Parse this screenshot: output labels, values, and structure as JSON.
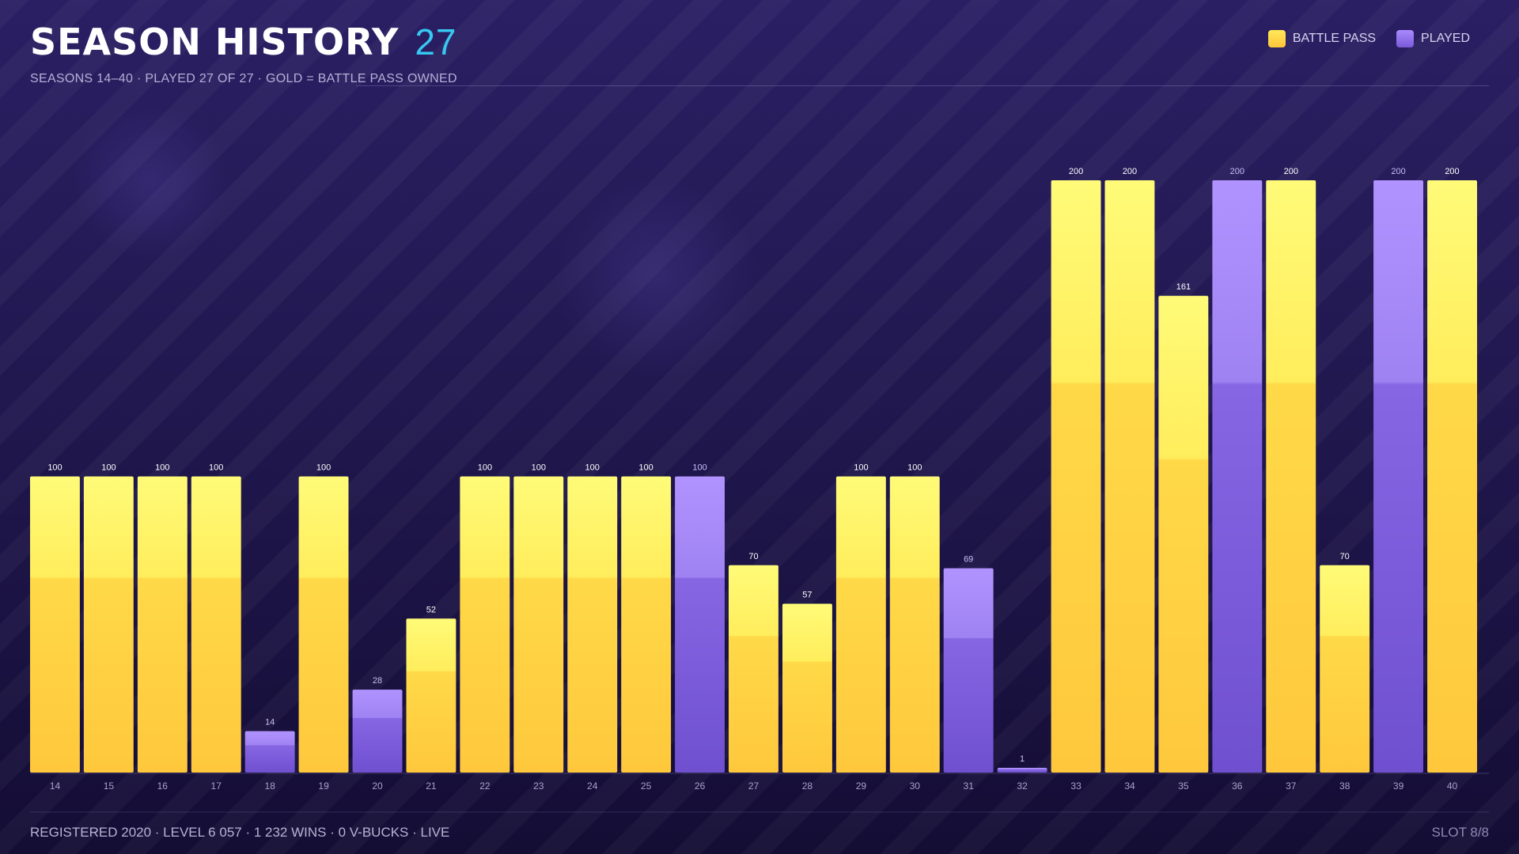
{
  "header": {
    "title": "SEASON HISTORY",
    "count": "27",
    "subtitle": "SEASONS 14–40 · PLAYED 27 OF 27 · GOLD = BATTLE PASS OWNED"
  },
  "legend": {
    "items": [
      {
        "label": "BATTLE PASS",
        "color": "#ffd84a"
      },
      {
        "label": "PLAYED",
        "color": "#8e6ff0"
      }
    ]
  },
  "footer": {
    "left": "REGISTERED 2020 · LEVEL 6 057 · 1 232 WINS · 0 V-BUCKS · LIVE",
    "right": "SLOT 8/8"
  },
  "chart_data": {
    "type": "bar",
    "categories": [
      "14",
      "15",
      "16",
      "17",
      "18",
      "19",
      "20",
      "21",
      "22",
      "23",
      "24",
      "25",
      "26",
      "27",
      "28",
      "29",
      "30",
      "31",
      "32",
      "33",
      "34",
      "35",
      "36",
      "37",
      "38",
      "39",
      "40"
    ],
    "values": [
      100,
      100,
      100,
      100,
      14,
      100,
      28,
      52,
      100,
      100,
      100,
      100,
      100,
      70,
      57,
      100,
      100,
      69,
      1,
      200,
      200,
      161,
      200,
      200,
      70,
      200,
      200
    ],
    "battle_pass": [
      true,
      true,
      true,
      true,
      false,
      true,
      false,
      true,
      true,
      true,
      true,
      true,
      false,
      true,
      true,
      true,
      true,
      false,
      false,
      true,
      true,
      true,
      false,
      true,
      true,
      false,
      true
    ],
    "ylim": [
      0,
      200
    ],
    "grid": false,
    "legend_position": "top-right",
    "colors": {
      "battle_pass_top": "#fffb78",
      "battle_pass_bottom": "#ffc83c",
      "played_top": "#b193ff",
      "played_bottom": "#6f50cf",
      "label_bp": "#ffffff",
      "label_played": "#c9bdf5"
    }
  }
}
